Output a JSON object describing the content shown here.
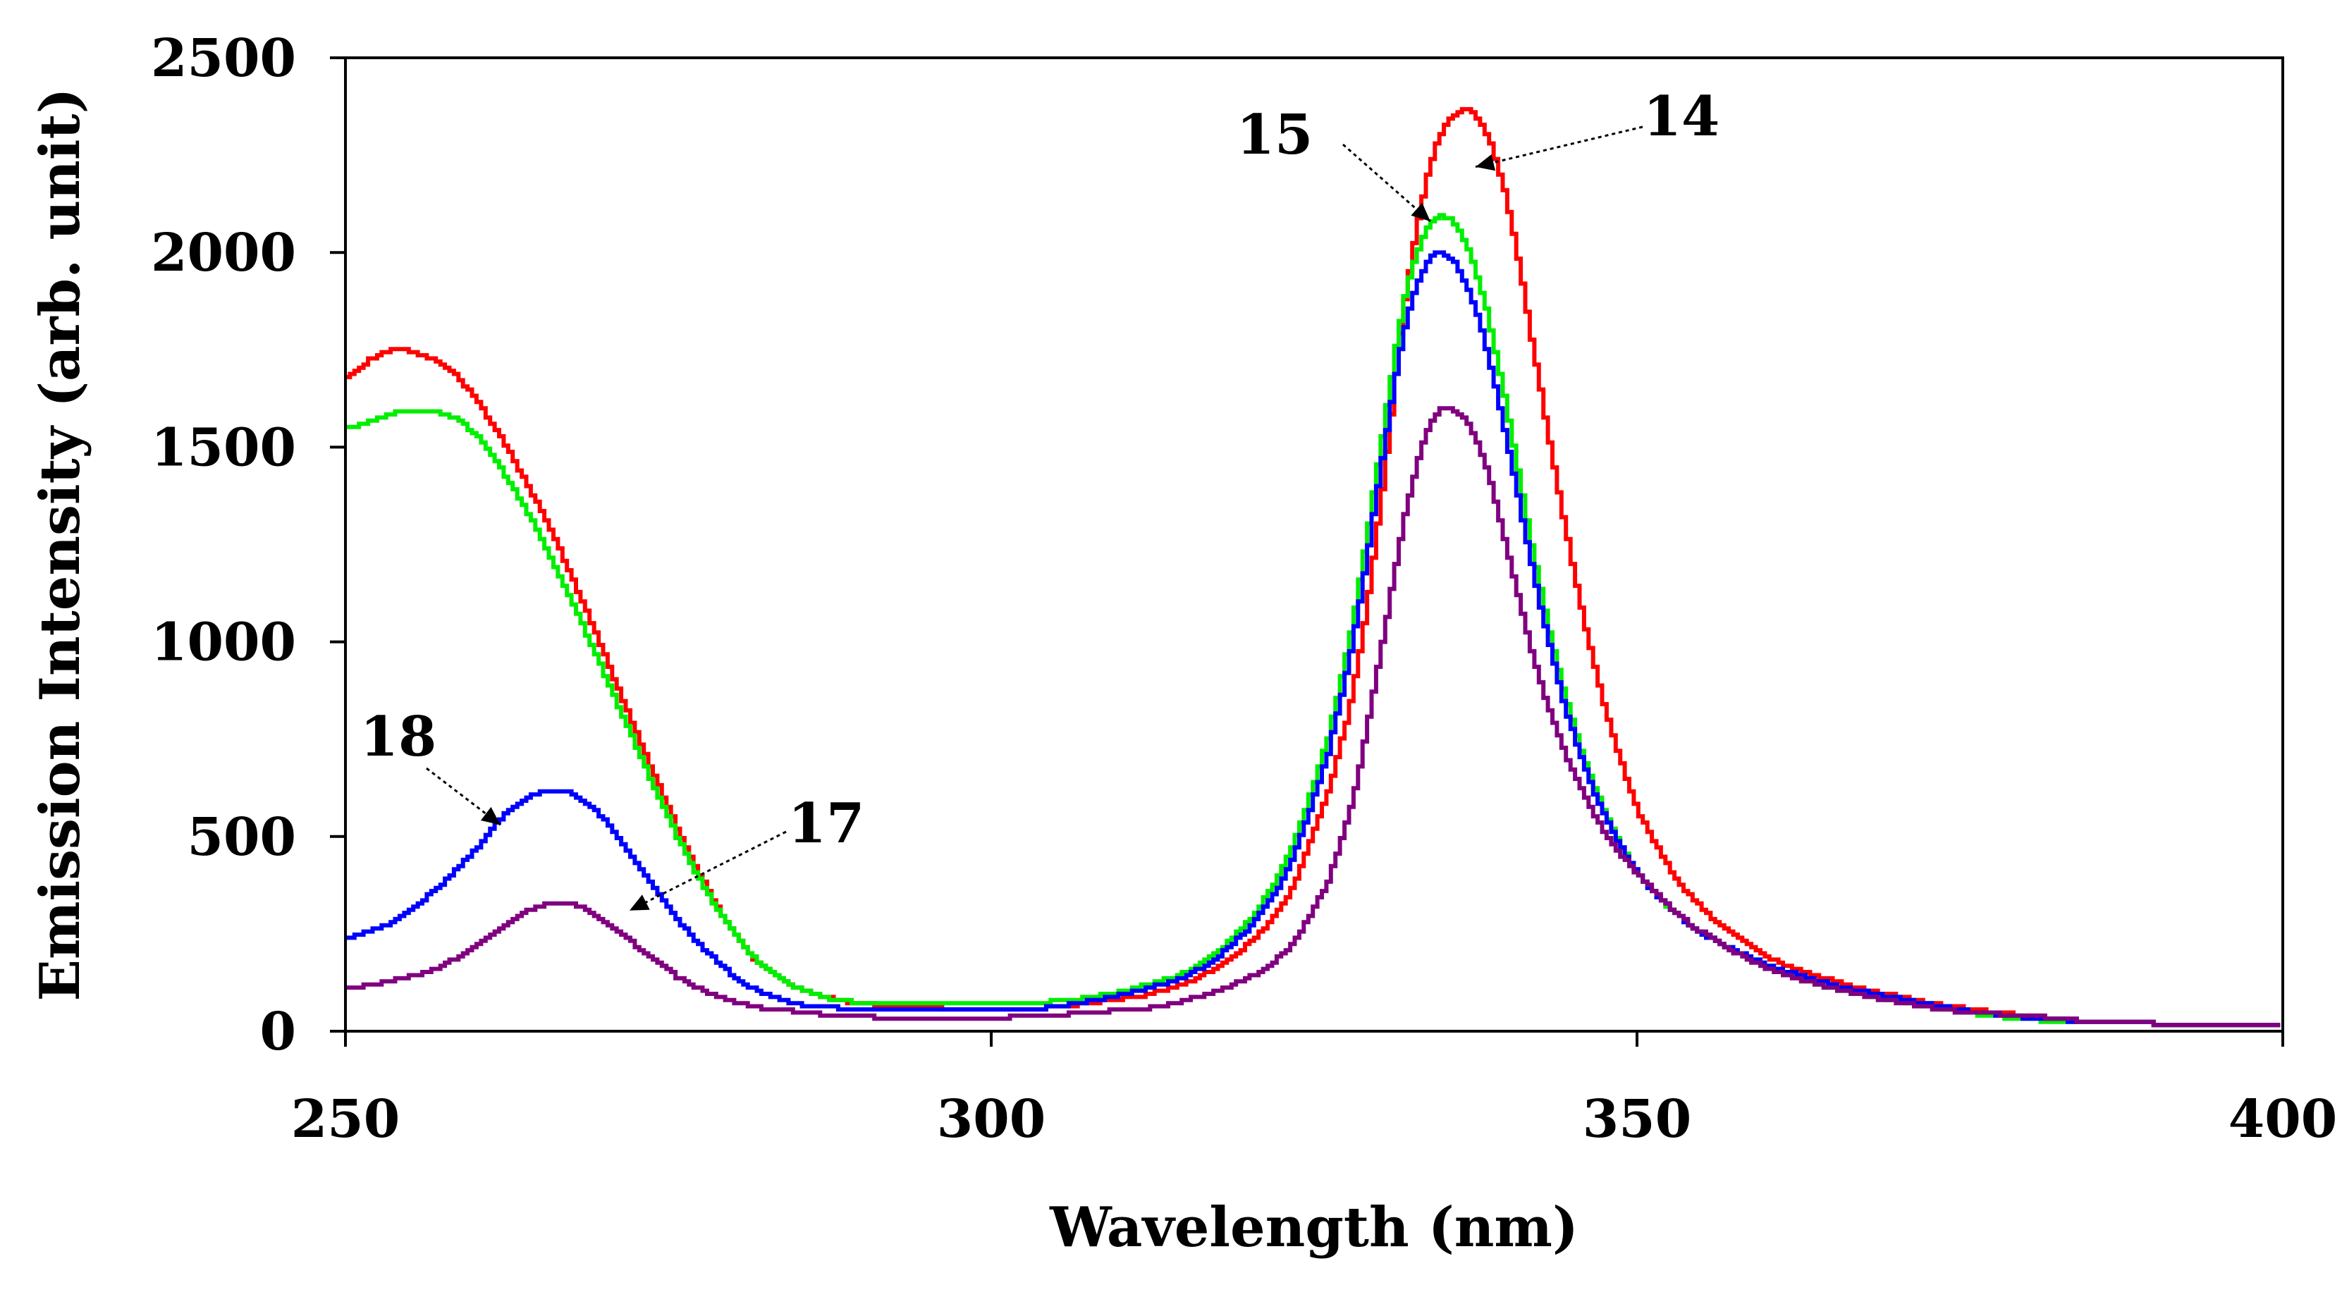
{
  "chart_data": {
    "type": "line",
    "title": "",
    "xlabel": "Wavelength (nm)",
    "ylabel": "Emission Intensity (arb. unit)",
    "xlim": [
      250,
      400
    ],
    "ylim": [
      0,
      2500
    ],
    "xticks": [
      250,
      300,
      350,
      400
    ],
    "yticks": [
      0,
      500,
      1000,
      1500,
      2000,
      2500
    ],
    "grid": false,
    "legend": "none",
    "series": [
      {
        "name": "14",
        "color": "#ff0000",
        "x": [
          250,
          252,
          254,
          256,
          258,
          260,
          262,
          264,
          266,
          268,
          270,
          272,
          274,
          276,
          278,
          280,
          282,
          285,
          288,
          292,
          296,
          300,
          304,
          308,
          312,
          316,
          320,
          323,
          326,
          328,
          330,
          332,
          334,
          336,
          338,
          340,
          342,
          344,
          346,
          348,
          350,
          353,
          356,
          360,
          365,
          370,
          375,
          380,
          385,
          390,
          395,
          400
        ],
        "y": [
          1680,
          1730,
          1750,
          1735,
          1700,
          1620,
          1520,
          1400,
          1270,
          1120,
          960,
          800,
          640,
          490,
          360,
          250,
          170,
          110,
          80,
          65,
          60,
          60,
          60,
          75,
          95,
          140,
          230,
          360,
          620,
          900,
          1350,
          1900,
          2240,
          2360,
          2320,
          2100,
          1720,
          1350,
          1020,
          760,
          560,
          390,
          280,
          190,
          130,
          90,
          60,
          40,
          25,
          20,
          15,
          15
        ]
      },
      {
        "name": "15",
        "color": "#00ee00",
        "x": [
          250,
          252,
          254,
          256,
          258,
          260,
          262,
          264,
          266,
          268,
          270,
          272,
          274,
          276,
          278,
          280,
          282,
          285,
          288,
          292,
          296,
          300,
          304,
          308,
          312,
          316,
          320,
          323,
          326,
          328,
          330,
          332,
          334,
          336,
          338,
          340,
          342,
          344,
          346,
          348,
          350,
          353,
          356,
          360,
          365,
          370,
          375,
          380,
          385,
          390,
          395,
          400
        ],
        "y": [
          1550,
          1570,
          1590,
          1590,
          1580,
          1530,
          1440,
          1330,
          1200,
          1060,
          910,
          760,
          610,
          470,
          350,
          250,
          170,
          110,
          80,
          70,
          70,
          70,
          75,
          90,
          120,
          170,
          290,
          460,
          760,
          1080,
          1500,
          1900,
          2080,
          2060,
          1880,
          1560,
          1200,
          900,
          680,
          520,
          400,
          300,
          230,
          170,
          110,
          80,
          50,
          30,
          25,
          20,
          15,
          15
        ]
      },
      {
        "name": "18",
        "color": "#0000ff",
        "x": [
          250,
          252,
          254,
          256,
          258,
          260,
          262,
          264,
          266,
          268,
          270,
          272,
          274,
          276,
          278,
          280,
          282,
          285,
          288,
          292,
          296,
          300,
          304,
          308,
          312,
          316,
          320,
          323,
          326,
          328,
          330,
          332,
          334,
          336,
          338,
          340,
          342,
          344,
          346,
          348,
          350,
          353,
          356,
          360,
          365,
          370,
          375,
          380,
          385,
          390,
          395,
          400
        ],
        "y": [
          240,
          260,
          290,
          340,
          400,
          470,
          550,
          600,
          620,
          600,
          540,
          450,
          360,
          270,
          200,
          140,
          100,
          70,
          60,
          55,
          55,
          55,
          60,
          80,
          110,
          160,
          270,
          430,
          720,
          1030,
          1440,
          1820,
          1990,
          1960,
          1780,
          1480,
          1150,
          870,
          660,
          510,
          400,
          300,
          230,
          170,
          120,
          85,
          55,
          35,
          25,
          20,
          15,
          15
        ]
      },
      {
        "name": "17",
        "color": "#800080",
        "x": [
          250,
          252,
          254,
          256,
          258,
          260,
          262,
          264,
          266,
          268,
          270,
          272,
          274,
          276,
          278,
          280,
          282,
          285,
          288,
          292,
          296,
          300,
          304,
          308,
          312,
          316,
          320,
          323,
          326,
          328,
          330,
          332,
          334,
          336,
          338,
          340,
          342,
          344,
          346,
          348,
          350,
          353,
          356,
          360,
          365,
          370,
          375,
          380,
          385,
          390,
          395,
          400
        ],
        "y": [
          110,
          120,
          135,
          150,
          180,
          220,
          270,
          310,
          330,
          320,
          280,
          230,
          180,
          130,
          100,
          75,
          60,
          50,
          40,
          35,
          35,
          35,
          40,
          50,
          60,
          90,
          140,
          220,
          390,
          620,
          970,
          1340,
          1570,
          1590,
          1470,
          1210,
          940,
          740,
          590,
          480,
          400,
          300,
          230,
          160,
          110,
          75,
          50,
          40,
          25,
          20,
          15,
          15
        ]
      }
    ],
    "annotations": [
      {
        "text": "14",
        "series": "14",
        "points_to": [
          337.5,
          2220
        ]
      },
      {
        "text": "15",
        "series": "15",
        "points_to": [
          334.0,
          2080
        ]
      },
      {
        "text": "18",
        "series": "18",
        "points_to": [
          262.0,
          530
        ]
      },
      {
        "text": "17",
        "series": "17",
        "points_to": [
          272.0,
          310
        ]
      }
    ]
  }
}
